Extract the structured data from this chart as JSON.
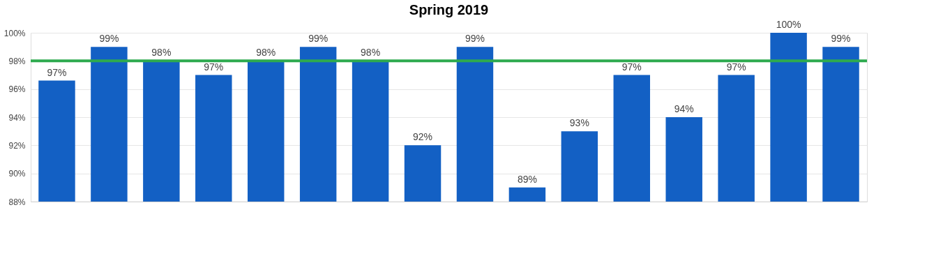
{
  "chart_data": {
    "type": "bar",
    "title": "Spring 2019",
    "categories": [
      null,
      null,
      null,
      null,
      null,
      null,
      null,
      null,
      null,
      null,
      null,
      null,
      null,
      null,
      null,
      null
    ],
    "values": [
      96.6,
      99,
      98,
      97,
      98,
      99,
      98,
      92,
      99,
      89,
      93,
      97,
      94,
      97,
      100,
      99
    ],
    "value_labels": [
      "97%",
      "99%",
      "98%",
      "97%",
      "98%",
      "99%",
      "98%",
      "92%",
      "99%",
      "89%",
      "93%",
      "97%",
      "94%",
      "97%",
      "100%",
      "99%"
    ],
    "color": "#1360c4",
    "ylim": [
      88,
      100
    ],
    "yticks": [
      {
        "value": 88,
        "label": "88%"
      },
      {
        "value": 90,
        "label": "90%"
      },
      {
        "value": 92,
        "label": "92%"
      },
      {
        "value": 94,
        "label": "94%"
      },
      {
        "value": 96,
        "label": "96%"
      },
      {
        "value": 98,
        "label": "98%"
      },
      {
        "value": 100,
        "label": "100%"
      }
    ],
    "ref_lines": [
      {
        "axis": "y",
        "value": 98,
        "color": "#2eaa4f"
      }
    ],
    "grid": "y",
    "tick_labels": "y"
  }
}
